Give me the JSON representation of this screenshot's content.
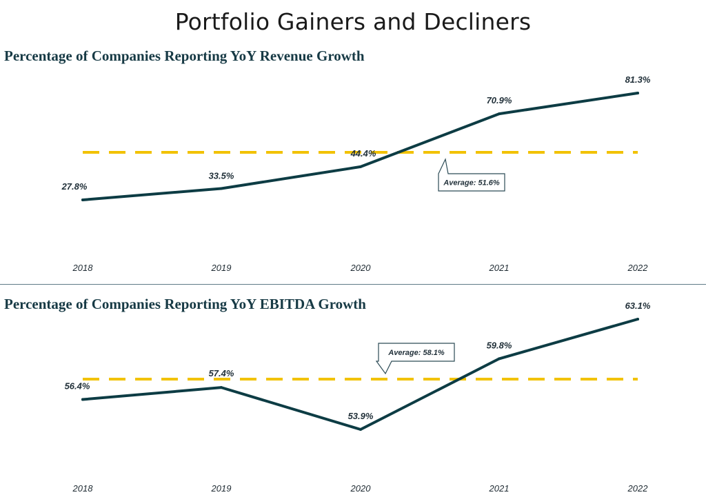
{
  "page_title": "Portfolio Gainers and Decliners",
  "colors": {
    "line": "#0d3c44",
    "average_line": "#f2c200",
    "title": "#173a45"
  },
  "chart_data": [
    {
      "type": "line",
      "title": "Percentage of Companies Reporting YoY Revenue Growth",
      "categories": [
        "2018",
        "2019",
        "2020",
        "2021",
        "2022"
      ],
      "series": [
        {
          "values": [
            27.8,
            33.5,
            44.4,
            70.9,
            81.3
          ]
        }
      ],
      "data_labels": [
        "27.8%",
        "33.5%",
        "44.4%",
        "70.9%",
        "81.3%"
      ],
      "average": {
        "value": 51.6,
        "label": "Average: 51.6%"
      },
      "ylim": [
        0,
        100
      ],
      "grid": false
    },
    {
      "type": "line",
      "title": "Percentage of Companies Reporting YoY EBITDA Growth",
      "categories": [
        "2018",
        "2019",
        "2020",
        "2021",
        "2022"
      ],
      "series": [
        {
          "values": [
            56.4,
            57.4,
            53.9,
            59.8,
            63.1
          ]
        }
      ],
      "data_labels": [
        "56.4%",
        "57.4%",
        "53.9%",
        "59.8%",
        "63.1%"
      ],
      "average": {
        "value": 58.1,
        "label": "Average: 58.1%"
      },
      "ylim": [
        48,
        68
      ],
      "grid": false
    }
  ]
}
